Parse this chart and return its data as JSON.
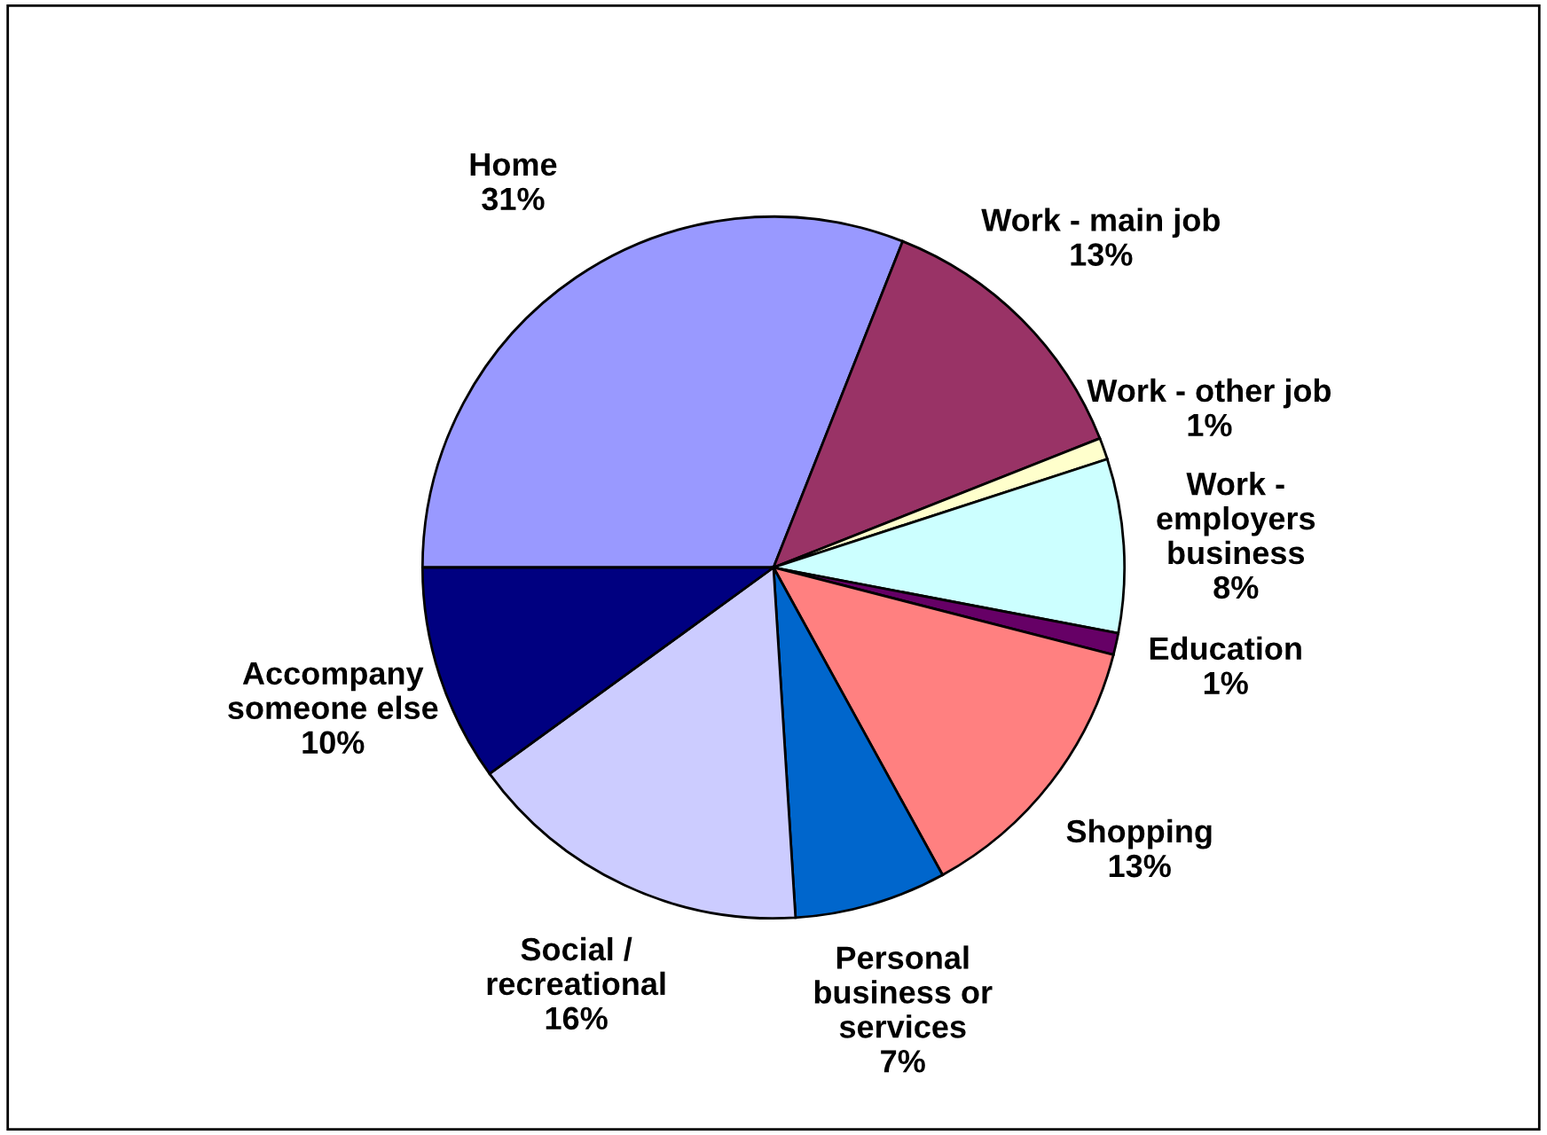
{
  "chart_data": {
    "type": "pie",
    "categories": [
      "Home",
      "Work - main job",
      "Work - other job",
      "Work -\nemployers\nbusiness",
      "Education",
      "Shopping",
      "Personal\nbusiness or\nservices",
      "Social /\nrecreational",
      "Accompany\nsomeone else"
    ],
    "values": [
      31,
      13,
      1,
      8,
      1,
      13,
      7,
      16,
      10
    ],
    "value_labels": [
      "31%",
      "13%",
      "1%",
      "8%",
      "1%",
      "13%",
      "7%",
      "16%",
      "10%"
    ],
    "colors": [
      "#9999ff",
      "#993366",
      "#ffffcc",
      "#ccffff",
      "#660066",
      "#ff8080",
      "#0066cc",
      "#ccccff",
      "#000080"
    ]
  }
}
